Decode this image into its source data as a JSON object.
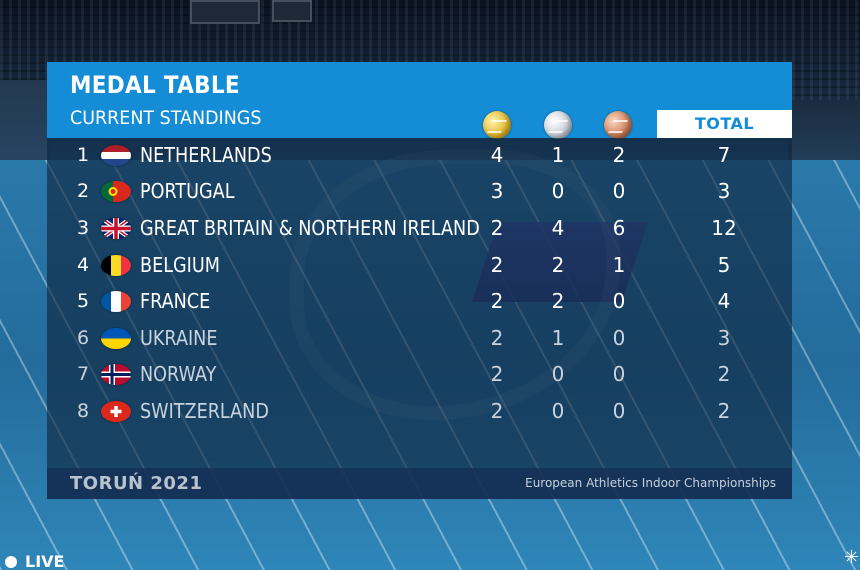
{
  "header": {
    "title": "MEDAL TABLE",
    "subtitle": "CURRENT STANDINGS",
    "total_label": "TOTAL"
  },
  "medal_icons": [
    "gold-medal-icon",
    "silver-medal-icon",
    "bronze-medal-icon"
  ],
  "rows": [
    {
      "rank": "1",
      "country": "NETHERLANDS",
      "flag": "netherlands-flag-icon",
      "gold": "4",
      "silver": "1",
      "bronze": "2",
      "total": "7"
    },
    {
      "rank": "2",
      "country": "PORTUGAL",
      "flag": "portugal-flag-icon",
      "gold": "3",
      "silver": "0",
      "bronze": "0",
      "total": "3"
    },
    {
      "rank": "3",
      "country": "GREAT BRITAIN & NORTHERN IRELAND",
      "flag": "great-britain-flag-icon",
      "gold": "2",
      "silver": "4",
      "bronze": "6",
      "total": "12"
    },
    {
      "rank": "4",
      "country": "BELGIUM",
      "flag": "belgium-flag-icon",
      "gold": "2",
      "silver": "2",
      "bronze": "1",
      "total": "5"
    },
    {
      "rank": "5",
      "country": "FRANCE",
      "flag": "france-flag-icon",
      "gold": "2",
      "silver": "2",
      "bronze": "0",
      "total": "4"
    },
    {
      "rank": "6",
      "country": "UKRAINE",
      "flag": "ukraine-flag-icon",
      "gold": "2",
      "silver": "1",
      "bronze": "0",
      "total": "3"
    },
    {
      "rank": "7",
      "country": "NORWAY",
      "flag": "norway-flag-icon",
      "gold": "2",
      "silver": "0",
      "bronze": "0",
      "total": "2"
    },
    {
      "rank": "8",
      "country": "SWITZERLAND",
      "flag": "switzerland-flag-icon",
      "gold": "2",
      "silver": "0",
      "bronze": "0",
      "total": "2"
    }
  ],
  "footer": {
    "event": "TORUŃ 2021",
    "organization": "European Athletics Indoor Championships"
  },
  "live_label": "LIVE",
  "colors": {
    "header_blue": "#148cd6",
    "panel_body": "#0e233c",
    "footer_bar": "#142d50"
  }
}
